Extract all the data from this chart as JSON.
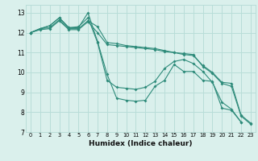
{
  "xlabel": "Humidex (Indice chaleur)",
  "ylabel": "",
  "xlim": [
    -0.5,
    23.5
  ],
  "ylim": [
    7,
    13.4
  ],
  "yticks": [
    7,
    8,
    9,
    10,
    11,
    12,
    13
  ],
  "xticks": [
    0,
    1,
    2,
    3,
    4,
    5,
    6,
    7,
    8,
    9,
    10,
    11,
    12,
    13,
    14,
    15,
    16,
    17,
    18,
    19,
    20,
    21,
    22,
    23
  ],
  "bg_color": "#daf0ec",
  "grid_color": "#b8ddd8",
  "line_color": "#2e8b7a",
  "lines": [
    {
      "x": [
        0,
        1,
        2,
        3,
        4,
        5,
        6,
        7,
        8,
        9,
        10,
        11,
        12,
        13,
        14,
        15,
        16,
        17,
        18,
        19,
        20,
        21,
        22,
        23
      ],
      "y": [
        12.0,
        12.2,
        12.35,
        12.75,
        12.25,
        12.25,
        13.0,
        11.55,
        9.9,
        8.7,
        8.6,
        8.55,
        8.6,
        9.3,
        9.6,
        10.4,
        10.05,
        10.05,
        9.6,
        9.55,
        8.2,
        8.1,
        7.5,
        null
      ]
    },
    {
      "x": [
        0,
        1,
        2,
        3,
        4,
        5,
        6,
        7,
        8,
        9,
        10,
        11,
        12,
        13,
        14,
        15,
        16,
        17,
        18,
        19,
        20,
        21,
        22,
        23
      ],
      "y": [
        12.0,
        12.2,
        12.35,
        12.75,
        12.25,
        12.3,
        12.75,
        11.5,
        9.6,
        9.25,
        9.2,
        9.15,
        9.25,
        9.55,
        10.2,
        10.55,
        10.65,
        10.45,
        10.05,
        9.5,
        8.5,
        8.15,
        7.5,
        null
      ]
    },
    {
      "x": [
        0,
        1,
        2,
        3,
        4,
        5,
        6,
        7,
        8,
        9,
        10,
        11,
        12,
        13,
        14,
        15,
        16,
        17,
        18,
        19,
        20,
        21,
        22,
        23
      ],
      "y": [
        12.0,
        12.2,
        12.25,
        12.65,
        12.2,
        12.2,
        12.6,
        12.3,
        11.5,
        11.45,
        11.35,
        11.3,
        11.25,
        11.2,
        11.1,
        11.0,
        10.9,
        10.85,
        10.35,
        10.0,
        9.5,
        9.45,
        7.85,
        7.45
      ]
    },
    {
      "x": [
        0,
        1,
        2,
        3,
        4,
        5,
        6,
        7,
        8,
        9,
        10,
        11,
        12,
        13,
        14,
        15,
        16,
        17,
        18,
        19,
        20,
        21,
        22,
        23
      ],
      "y": [
        12.0,
        12.15,
        12.2,
        12.6,
        12.15,
        12.15,
        12.55,
        12.0,
        11.4,
        11.35,
        11.3,
        11.25,
        11.2,
        11.15,
        11.05,
        11.0,
        10.95,
        10.9,
        10.3,
        9.95,
        9.45,
        9.3,
        7.8,
        7.4
      ]
    }
  ]
}
